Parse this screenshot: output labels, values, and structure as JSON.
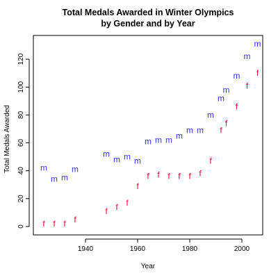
{
  "chart_data": {
    "type": "scatter",
    "title": [
      "Total Medals Awarded in Winter Olympics",
      "by Gender and by Year"
    ],
    "xlabel": "Year",
    "ylabel": "Total Medals Awarded",
    "xlim": [
      1920,
      2008
    ],
    "ylim": [
      -6,
      137
    ],
    "xticks": [
      1940,
      1960,
      1980,
      2000
    ],
    "yticks": [
      0,
      20,
      40,
      60,
      80,
      100,
      120
    ],
    "grid": false,
    "legend": "none",
    "series": [
      {
        "marker": "m",
        "color": "#3333ff",
        "points": [
          [
            1924,
            42
          ],
          [
            1928,
            34
          ],
          [
            1932,
            35
          ],
          [
            1936,
            41
          ],
          [
            1948,
            52
          ],
          [
            1952,
            48
          ],
          [
            1956,
            50
          ],
          [
            1960,
            47
          ],
          [
            1964,
            61
          ],
          [
            1968,
            62
          ],
          [
            1972,
            62
          ],
          [
            1976,
            65
          ],
          [
            1980,
            69
          ],
          [
            1984,
            69
          ],
          [
            1988,
            80
          ],
          [
            1992,
            92
          ],
          [
            1994,
            98
          ],
          [
            1998,
            108
          ],
          [
            2002,
            122
          ],
          [
            2006,
            131
          ]
        ]
      },
      {
        "marker": "f",
        "color": "#ff0033",
        "points": [
          [
            1924,
            2
          ],
          [
            1928,
            2
          ],
          [
            1932,
            2
          ],
          [
            1936,
            5
          ],
          [
            1948,
            11
          ],
          [
            1952,
            14
          ],
          [
            1956,
            17
          ],
          [
            1960,
            29
          ],
          [
            1964,
            36
          ],
          [
            1968,
            37
          ],
          [
            1972,
            36
          ],
          [
            1976,
            36
          ],
          [
            1980,
            36
          ],
          [
            1984,
            38
          ],
          [
            1988,
            47
          ],
          [
            1992,
            69
          ],
          [
            1994,
            74
          ],
          [
            1998,
            86
          ],
          [
            2002,
            101
          ],
          [
            2006,
            110
          ]
        ]
      }
    ]
  }
}
